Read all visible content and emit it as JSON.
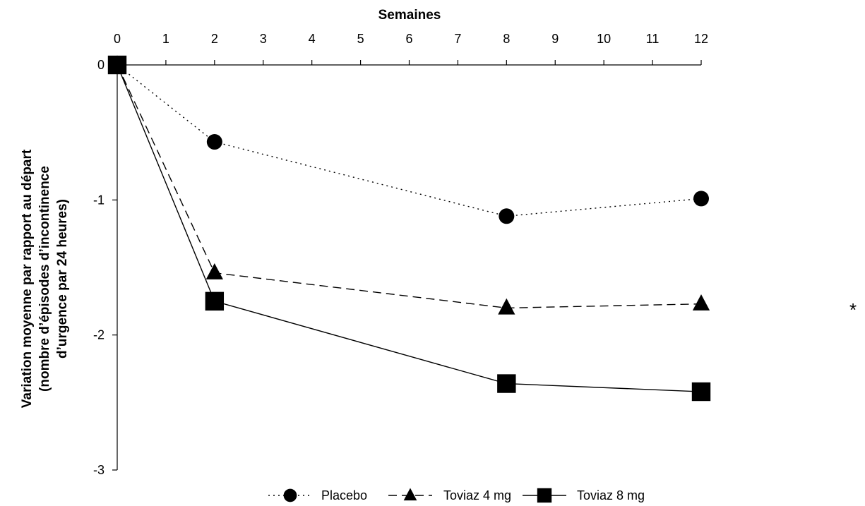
{
  "chart_data": {
    "type": "line",
    "title": "",
    "xlabel": "Semaines",
    "ylabel_lines": [
      "Variation moyenne par rapport au départ",
      "(nombre d’épisodes d’incontinence",
      "d’urgence par 24 heures)"
    ],
    "x_ticks": [
      "0",
      "1",
      "2",
      "3",
      "4",
      "5",
      "6",
      "7",
      "8",
      "9",
      "10",
      "11",
      "12"
    ],
    "y_ticks": [
      "0",
      "-1",
      "-2",
      "-3"
    ],
    "xlim": [
      0,
      12
    ],
    "ylim": [
      -3,
      0
    ],
    "x_axis_position": "top",
    "grid": false,
    "legend_position": "bottom",
    "x": [
      0,
      2,
      8,
      12
    ],
    "series": [
      {
        "name": "Placebo",
        "values": [
          0,
          -0.57,
          -1.12,
          -0.99
        ],
        "marker": "circle",
        "line": "dotted"
      },
      {
        "name": "Toviaz 4 mg",
        "values": [
          0,
          -1.54,
          -1.8,
          -1.77
        ],
        "marker": "triangle",
        "line": "dashed"
      },
      {
        "name": "Toviaz 8 mg",
        "values": [
          0,
          -1.75,
          -2.36,
          -2.42
        ],
        "marker": "square",
        "line": "solid"
      }
    ],
    "annotation": "*"
  }
}
